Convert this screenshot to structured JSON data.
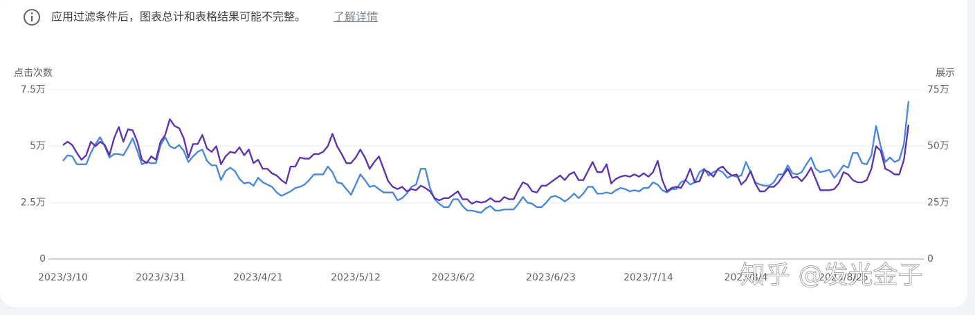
{
  "notice": {
    "text": "应用过滤条件后，图表总计和表格结果可能不完整。",
    "link": "了解详情"
  },
  "watermark": "知乎 @发光金子",
  "chart_data": {
    "type": "line",
    "ylabel": "点击次数",
    "y2label": "展示",
    "categories": [
      "2023/3/10",
      null,
      null,
      null,
      null,
      null,
      null,
      null,
      null,
      null,
      null,
      null,
      null,
      null,
      null,
      null,
      null,
      null,
      null,
      null,
      null,
      "2023/3/31",
      null,
      null,
      null,
      null,
      null,
      null,
      null,
      null,
      null,
      null,
      null,
      null,
      null,
      null,
      null,
      null,
      null,
      null,
      null,
      null,
      "2023/4/21",
      null,
      null,
      null,
      null,
      null,
      null,
      null,
      null,
      null,
      null,
      null,
      null,
      null,
      null,
      null,
      null,
      null,
      null,
      null,
      null,
      "2023/5/12",
      null,
      null,
      null,
      null,
      null,
      null,
      null,
      null,
      null,
      null,
      null,
      null,
      null,
      null,
      null,
      null,
      null,
      null,
      null,
      null,
      "2023/6/2",
      null,
      null,
      null,
      null,
      null,
      null,
      null,
      null,
      null,
      null,
      null,
      null,
      null,
      null,
      null,
      null,
      null,
      null,
      null,
      null,
      "2023/6/23",
      null,
      null,
      null,
      null,
      null,
      null,
      null,
      null,
      null,
      null,
      null,
      null,
      null,
      null,
      null,
      null,
      null,
      null,
      null,
      null,
      "2023/7/14",
      null,
      null,
      null,
      null,
      null,
      null,
      null,
      null,
      null,
      null,
      null,
      null,
      null,
      null,
      null,
      null,
      null,
      null,
      null,
      null,
      "2023/8/4",
      null,
      null,
      null,
      null,
      null,
      null,
      null,
      null,
      null,
      null,
      null,
      null,
      null,
      null,
      null,
      null,
      null,
      null,
      null,
      null,
      "2023/8/25",
      null,
      null,
      null,
      null,
      null,
      null,
      null,
      null,
      null,
      null,
      null,
      null,
      null,
      null
    ],
    "series": [
      {
        "color": "#5e35b1",
        "axis": "y",
        "values": [
          50500,
          52000,
          50500,
          47000,
          44000,
          46000,
          52000,
          50000,
          52000,
          50500,
          46000,
          53500,
          58500,
          52000,
          57500,
          57000,
          52000,
          44000,
          42500,
          45500,
          44000,
          52000,
          55000,
          62000,
          59000,
          58000,
          53500,
          45000,
          51000,
          51000,
          55000,
          49000,
          47500,
          50000,
          42000,
          45500,
          47500,
          47000,
          49500,
          46000,
          48500,
          42500,
          44000,
          40000,
          40000,
          38000,
          37000,
          35000,
          33500,
          41000,
          41000,
          45000,
          44500,
          44500,
          46500,
          46500,
          47500,
          50000,
          55500,
          50000,
          46500,
          42500,
          42500,
          45000,
          48500,
          45000,
          40000,
          43000,
          45500,
          40000,
          34500,
          32000,
          31000,
          32000,
          30000,
          31000,
          30500,
          32500,
          31500,
          30000,
          27000,
          26000,
          27000,
          27000,
          28500,
          30000,
          26500,
          26500,
          24500,
          25500,
          25000,
          25500,
          27000,
          25500,
          25500,
          27500,
          26500,
          26500,
          30500,
          34000,
          33000,
          30000,
          29500,
          32500,
          32500,
          34000,
          35500,
          37000,
          35000,
          37500,
          38500,
          35000,
          35000,
          39000,
          43000,
          38500,
          38500,
          42000,
          33500,
          35500,
          36500,
          37000,
          36500,
          37500,
          36500,
          38000,
          36500,
          38500,
          43500,
          35000,
          30000,
          31500,
          32000,
          31500,
          35000,
          40000,
          34000,
          34500,
          39500,
          38500,
          36500,
          40000,
          41000,
          38500,
          37000,
          37500,
          33000,
          35000,
          39000,
          33500,
          30000,
          30000,
          32000,
          32000,
          34000,
          37000,
          40000,
          36000,
          36500,
          34500,
          37000,
          40500,
          35500,
          30500,
          30500,
          30500,
          31000,
          33500,
          38500,
          37500,
          35000,
          34000,
          34000,
          35000,
          40000,
          50000,
          48000,
          40000,
          39000,
          37500,
          37500,
          44000,
          59500
        ]
      },
      {
        "color": "#4a88da",
        "axis": "y2",
        "values": [
          435000,
          460000,
          455000,
          420000,
          420000,
          420000,
          470000,
          510000,
          540000,
          500000,
          450000,
          465000,
          465000,
          460000,
          495000,
          535000,
          480000,
          420000,
          430000,
          425000,
          425000,
          505000,
          540000,
          500000,
          490000,
          505000,
          480000,
          430000,
          455000,
          475000,
          485000,
          435000,
          415000,
          415000,
          350000,
          390000,
          405000,
          390000,
          355000,
          335000,
          340000,
          325000,
          360000,
          340000,
          330000,
          320000,
          295000,
          280000,
          290000,
          300000,
          315000,
          320000,
          330000,
          350000,
          375000,
          375000,
          375000,
          410000,
          385000,
          340000,
          335000,
          310000,
          285000,
          330000,
          375000,
          350000,
          320000,
          325000,
          310000,
          295000,
          295000,
          295000,
          260000,
          270000,
          290000,
          320000,
          330000,
          400000,
          400000,
          315000,
          265000,
          245000,
          230000,
          230000,
          265000,
          265000,
          235000,
          215000,
          215000,
          210000,
          205000,
          225000,
          235000,
          215000,
          215000,
          220000,
          220000,
          220000,
          245000,
          275000,
          250000,
          245000,
          230000,
          230000,
          250000,
          275000,
          280000,
          270000,
          255000,
          270000,
          290000,
          270000,
          290000,
          320000,
          320000,
          290000,
          290000,
          295000,
          290000,
          305000,
          315000,
          310000,
          300000,
          305000,
          300000,
          315000,
          315000,
          340000,
          330000,
          305000,
          295000,
          310000,
          310000,
          340000,
          350000,
          330000,
          340000,
          385000,
          400000,
          370000,
          385000,
          395000,
          385000,
          360000,
          370000,
          365000,
          370000,
          430000,
          385000,
          340000,
          330000,
          325000,
          325000,
          340000,
          375000,
          375000,
          415000,
          380000,
          375000,
          385000,
          420000,
          450000,
          400000,
          385000,
          390000,
          395000,
          360000,
          385000,
          415000,
          405000,
          470000,
          470000,
          425000,
          420000,
          460000,
          590000,
          500000,
          430000,
          450000,
          430000,
          440000,
          510000,
          700000
        ]
      }
    ],
    "ylim": [
      0,
      75000
    ],
    "yticks": [
      0,
      {
        "value": 25000,
        "label": "2.5万"
      },
      {
        "value": 50000,
        "label": "5万"
      },
      {
        "value": 75000,
        "label": "7.5万"
      }
    ],
    "y2lim": [
      0,
      750000
    ],
    "y2ticks": [
      0,
      {
        "value": 250000,
        "label": "25万"
      },
      {
        "value": 500000,
        "label": "50万"
      },
      {
        "value": 750000,
        "label": "75万"
      }
    ],
    "grid": true
  }
}
